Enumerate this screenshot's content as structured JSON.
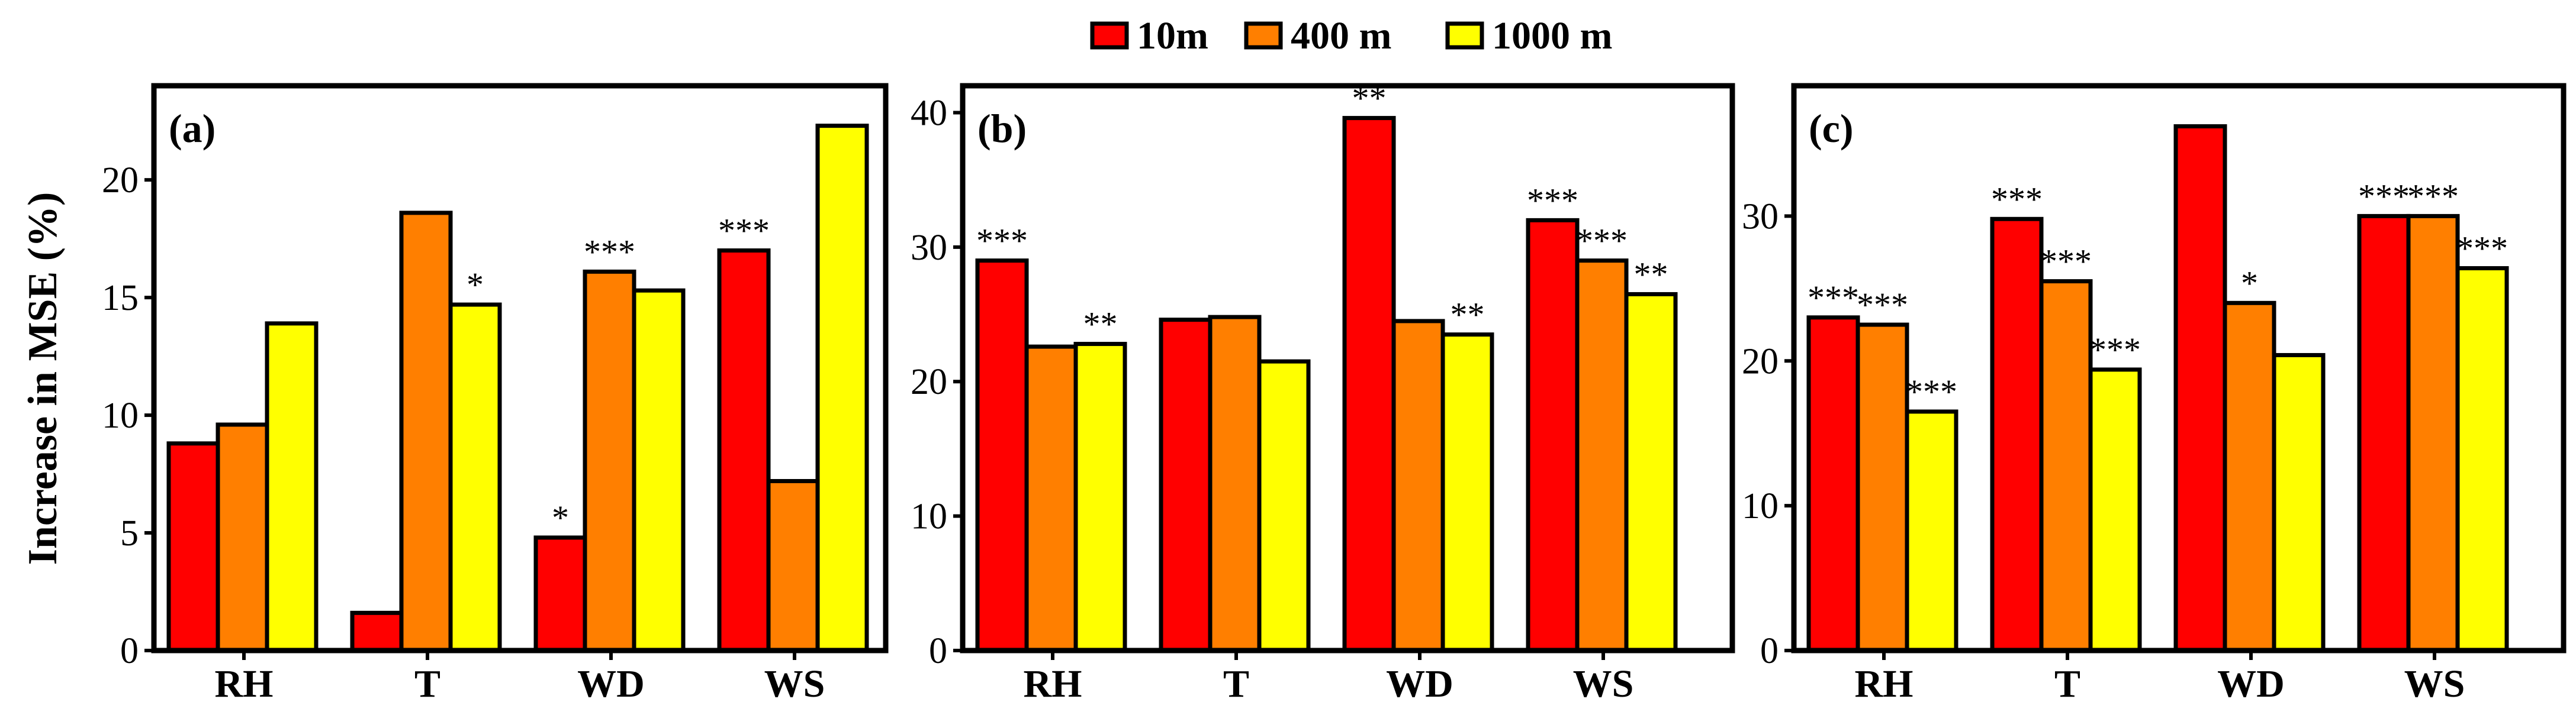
{
  "legend": [
    {
      "label": "10m",
      "color": "#ff0000"
    },
    {
      "label": "400 m",
      "color": "#ff7f00"
    },
    {
      "label": "1000 m",
      "color": "#ffff00"
    }
  ],
  "ylabel": "Increase in MSE (%)",
  "chart_data": [
    {
      "type": "bar",
      "tag": "(a)",
      "categories": [
        "RH",
        "T",
        "WD",
        "WS"
      ],
      "ylim": [
        0,
        24
      ],
      "yticks": [
        0,
        5,
        10,
        15,
        20
      ],
      "series": [
        {
          "name": "10m",
          "values": [
            8.8,
            1.6,
            4.8,
            17.0
          ]
        },
        {
          "name": "400 m",
          "values": [
            9.6,
            18.6,
            16.1,
            7.2
          ]
        },
        {
          "name": "1000 m",
          "values": [
            13.9,
            14.7,
            15.3,
            22.3
          ]
        }
      ],
      "significance": [
        [
          "",
          "",
          ""
        ],
        [
          "",
          "",
          "*"
        ],
        [
          "*",
          "***",
          ""
        ],
        [
          "***",
          "",
          ""
        ]
      ]
    },
    {
      "type": "bar",
      "tag": "(b)",
      "categories": [
        "RH",
        "T",
        "WD",
        "WS"
      ],
      "ylim": [
        0,
        42
      ],
      "yticks": [
        0,
        10,
        20,
        30,
        40
      ],
      "series": [
        {
          "name": "10m",
          "values": [
            29.0,
            24.6,
            39.6,
            32.0
          ]
        },
        {
          "name": "400 m",
          "values": [
            22.6,
            24.8,
            24.5,
            29.0
          ]
        },
        {
          "name": "1000 m",
          "values": [
            22.8,
            21.5,
            23.5,
            26.5
          ]
        }
      ],
      "significance": [
        [
          "***",
          "",
          "**"
        ],
        [
          "",
          "",
          ""
        ],
        [
          "**",
          "",
          "**"
        ],
        [
          "***",
          "***",
          "**"
        ]
      ]
    },
    {
      "type": "bar",
      "tag": "(c)",
      "categories": [
        "RH",
        "T",
        "WD",
        "WS"
      ],
      "ylim": [
        0,
        39
      ],
      "yticks": [
        0,
        10,
        20,
        30
      ],
      "series": [
        {
          "name": "10m",
          "values": [
            23.0,
            29.8,
            36.2,
            30.0
          ]
        },
        {
          "name": "400 m",
          "values": [
            22.5,
            25.5,
            24.0,
            30.0
          ]
        },
        {
          "name": "1000 m",
          "values": [
            16.5,
            19.4,
            20.4,
            26.4
          ]
        }
      ],
      "significance": [
        [
          "***",
          "***",
          "***"
        ],
        [
          "***",
          "***",
          "***"
        ],
        [
          "",
          "*",
          ""
        ],
        [
          "***",
          "***",
          "***"
        ]
      ]
    }
  ]
}
